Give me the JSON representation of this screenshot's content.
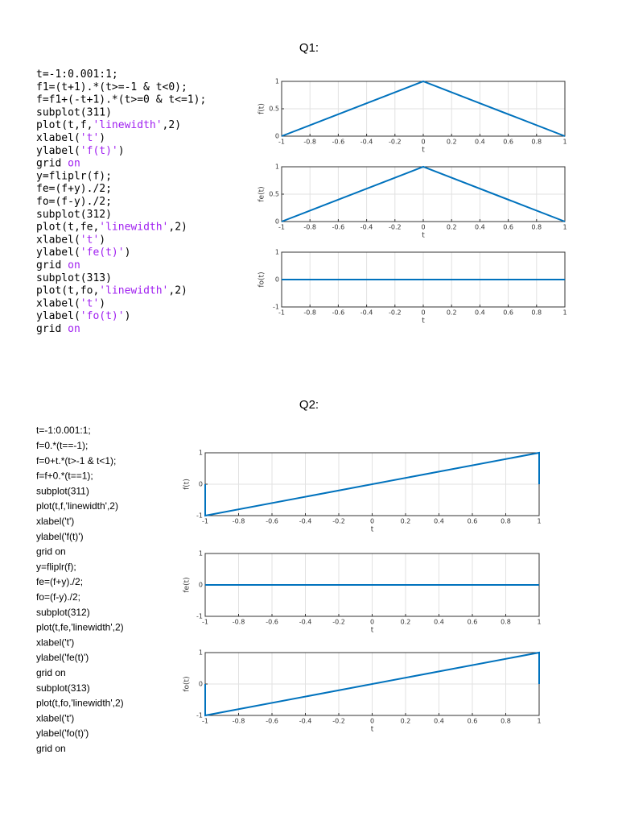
{
  "sections": [
    {
      "heading": "Q1:",
      "code_style": "mono",
      "string_color": "#a020f0",
      "code": [
        "t=-1:0.001:1;",
        "f1=(t+1).*(t>=-1 & t<0);",
        "f=f1+(-t+1).*(t>=0 & t<=1);",
        "subplot(311)",
        "plot(t,f,'linewidth',2)",
        "xlabel('t')",
        "ylabel('f(t)')",
        "grid on",
        "y=fliplr(f);",
        "fe=(f+y)./2;",
        "fo=(f-y)./2;",
        "subplot(312)",
        "plot(t,fe,'linewidth',2)",
        "xlabel('t')",
        "ylabel('fe(t)')",
        "grid on",
        "subplot(313)",
        "plot(t,fo,'linewidth',2)",
        "xlabel('t')",
        "ylabel('fo(t)')",
        "grid on"
      ],
      "plots": [
        {
          "type": "line",
          "xlabel": "t",
          "ylabel": "f(t)",
          "x": [
            -1,
            0,
            1
          ],
          "values": [
            0,
            1,
            0
          ],
          "color": "#0072bd",
          "grid": true,
          "xlim": [
            -1,
            1
          ],
          "ylim": [
            0,
            1
          ],
          "xticks": [
            -1,
            -0.8,
            -0.6,
            -0.4,
            -0.2,
            0,
            0.2,
            0.4,
            0.6,
            0.8,
            1
          ],
          "yticks": [
            0,
            0.5,
            1
          ]
        },
        {
          "type": "line",
          "xlabel": "t",
          "ylabel": "fe(t)",
          "x": [
            -1,
            0,
            1
          ],
          "values": [
            0,
            1,
            0
          ],
          "color": "#0072bd",
          "grid": true,
          "xlim": [
            -1,
            1
          ],
          "ylim": [
            0,
            1
          ],
          "xticks": [
            -1,
            -0.8,
            -0.6,
            -0.4,
            -0.2,
            0,
            0.2,
            0.4,
            0.6,
            0.8,
            1
          ],
          "yticks": [
            0,
            0.5,
            1
          ]
        },
        {
          "type": "line",
          "xlabel": "t",
          "ylabel": "fo(t)",
          "x": [
            -1,
            1
          ],
          "values": [
            0,
            0
          ],
          "color": "#0072bd",
          "grid": true,
          "xlim": [
            -1,
            1
          ],
          "ylim": [
            -1,
            1
          ],
          "xticks": [
            -1,
            -0.8,
            -0.6,
            -0.4,
            -0.2,
            0,
            0.2,
            0.4,
            0.6,
            0.8,
            1
          ],
          "yticks": [
            -1,
            0,
            1
          ]
        }
      ]
    },
    {
      "heading": "Q2:",
      "code_style": "sans",
      "code": [
        "t=-1:0.001:1;",
        "f=0.*(t==-1);",
        "f=0+t.*(t>-1 & t<1);",
        "f=f+0.*(t==1);",
        "subplot(311)",
        "plot(t,f,'linewidth',2)",
        "xlabel('t')",
        "ylabel('f(t)')",
        "grid on",
        "y=fliplr(f);",
        "fe=(f+y)./2;",
        "fo=(f-y)./2;",
        "subplot(312)",
        "plot(t,fe,'linewidth',2)",
        "xlabel('t')",
        "ylabel('fe(t)')",
        "grid on",
        "subplot(313)",
        "plot(t,fo,'linewidth',2)",
        "xlabel('t')",
        "ylabel('fo(t)')",
        "grid on"
      ],
      "plots": [
        {
          "type": "line",
          "xlabel": "t",
          "ylabel": "f(t)",
          "x": [
            -1,
            -1,
            1,
            1
          ],
          "values": [
            0,
            -1,
            1,
            0
          ],
          "color": "#0072bd",
          "grid": true,
          "xlim": [
            -1,
            1
          ],
          "ylim": [
            -1,
            1
          ],
          "xticks": [
            -1,
            -0.8,
            -0.6,
            -0.4,
            -0.2,
            0,
            0.2,
            0.4,
            0.6,
            0.8,
            1
          ],
          "yticks": [
            -1,
            0,
            1
          ]
        },
        {
          "type": "line",
          "xlabel": "t",
          "ylabel": "fe(t)",
          "x": [
            -1,
            1
          ],
          "values": [
            0,
            0
          ],
          "color": "#0072bd",
          "grid": true,
          "xlim": [
            -1,
            1
          ],
          "ylim": [
            -1,
            1
          ],
          "xticks": [
            -1,
            -0.8,
            -0.6,
            -0.4,
            -0.2,
            0,
            0.2,
            0.4,
            0.6,
            0.8,
            1
          ],
          "yticks": [
            -1,
            0,
            1
          ]
        },
        {
          "type": "line",
          "xlabel": "t",
          "ylabel": "fo(t)",
          "x": [
            -1,
            -1,
            1,
            1
          ],
          "values": [
            0,
            -1,
            1,
            0
          ],
          "color": "#0072bd",
          "grid": true,
          "xlim": [
            -1,
            1
          ],
          "ylim": [
            -1,
            1
          ],
          "xticks": [
            -1,
            -0.8,
            -0.6,
            -0.4,
            -0.2,
            0,
            0.2,
            0.4,
            0.6,
            0.8,
            1
          ],
          "yticks": [
            -1,
            0,
            1
          ]
        }
      ]
    }
  ]
}
